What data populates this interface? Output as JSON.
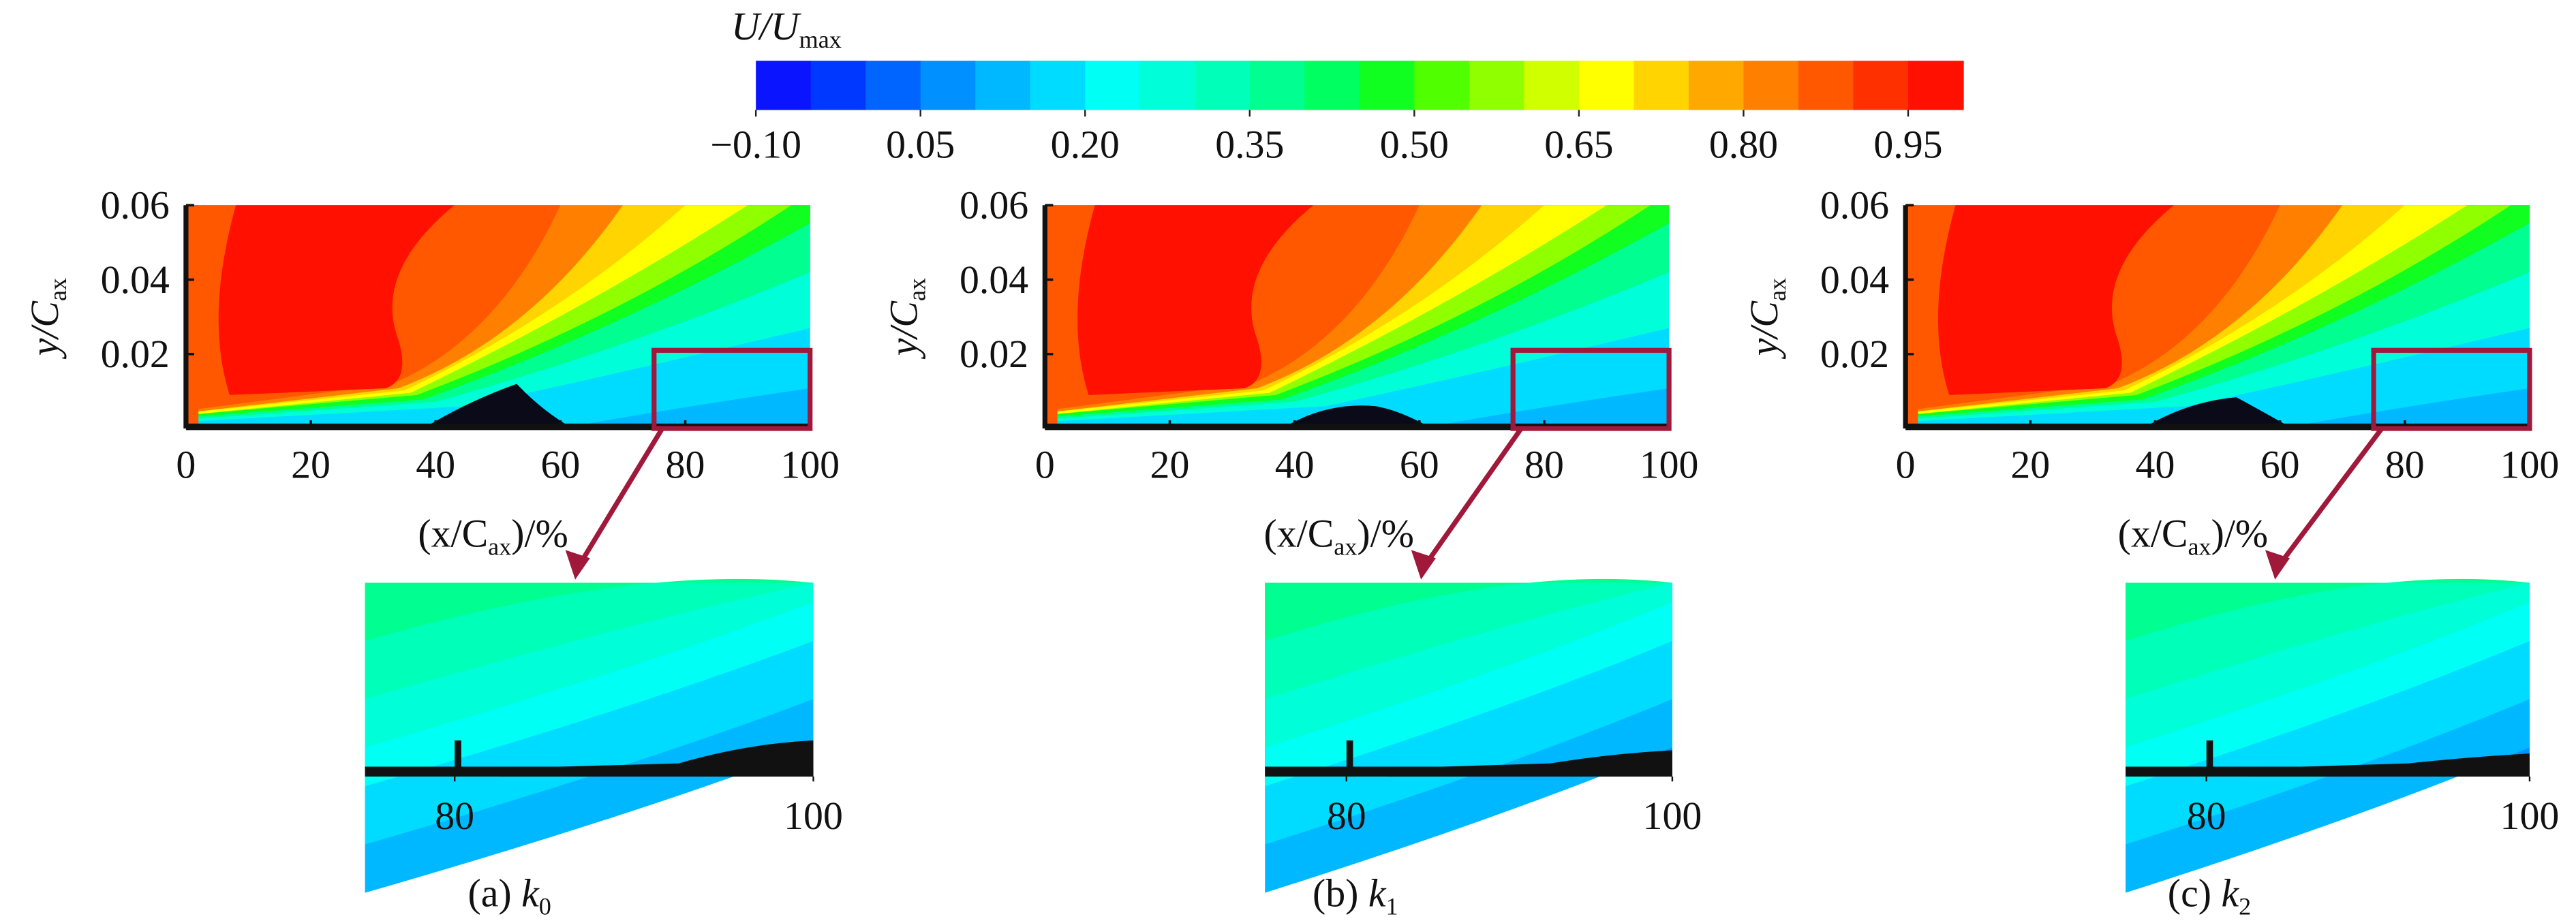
{
  "colorbar": {
    "title": "U/U",
    "title_sub": "max",
    "lim": [
      -0.1,
      1.0
    ],
    "ticks": [
      {
        "value": -0.1,
        "label": "−0.10"
      },
      {
        "value": 0.05,
        "label": "0.05"
      },
      {
        "value": 0.2,
        "label": "0.20"
      },
      {
        "value": 0.35,
        "label": "0.35"
      },
      {
        "value": 0.5,
        "label": "0.50"
      },
      {
        "value": 0.65,
        "label": "0.65"
      },
      {
        "value": 0.8,
        "label": "0.80"
      },
      {
        "value": 0.95,
        "label": "0.95"
      }
    ],
    "colors": [
      "#0a14ff",
      "#0038ff",
      "#0064ff",
      "#0090ff",
      "#00b8ff",
      "#00dcff",
      "#00fff4",
      "#00ffd8",
      "#00ffb8",
      "#00ff90",
      "#00ff60",
      "#10ff20",
      "#50ff00",
      "#90ff00",
      "#d0ff00",
      "#ffff00",
      "#ffd400",
      "#ffa800",
      "#ff8000",
      "#ff5800",
      "#ff3000",
      "#ff1000"
    ]
  },
  "chart_data": [
    {
      "type": "contour",
      "xlim": [
        0,
        100
      ],
      "xticks": [
        0,
        20,
        40,
        60,
        80,
        100
      ],
      "ylim": [
        0,
        0.06
      ],
      "yticks": [
        0.02,
        0.04,
        0.06
      ],
      "ylabel": "y/C",
      "ylabel_sub": "ax",
      "xlabel": [
        "(x/C",
        "ax",
        ")/%"
      ],
      "zoom": {
        "xlim": [
          75,
          100
        ],
        "ylim": [
          0,
          0.021
        ],
        "xticks": [
          80,
          100
        ]
      },
      "caption": [
        "(a) ",
        "k",
        "0"
      ],
      "box_color": "#a0183a"
    },
    {
      "type": "contour",
      "xlim": [
        0,
        100
      ],
      "xticks": [
        0,
        20,
        40,
        60,
        80,
        100
      ],
      "ylim": [
        0,
        0.06
      ],
      "yticks": [
        0.02,
        0.04,
        0.06
      ],
      "ylabel": "y/C",
      "ylabel_sub": "ax",
      "xlabel": [
        "(x/C",
        "ax",
        ")/%"
      ],
      "zoom": {
        "xlim": [
          75,
          100
        ],
        "ylim": [
          0,
          0.021
        ],
        "xticks": [
          80,
          100
        ]
      },
      "caption": [
        "(b) ",
        "k",
        "1"
      ],
      "box_color": "#a0183a"
    },
    {
      "type": "contour",
      "xlim": [
        0,
        100
      ],
      "xticks": [
        0,
        20,
        40,
        60,
        80,
        100
      ],
      "ylim": [
        0,
        0.06
      ],
      "yticks": [
        0.02,
        0.04,
        0.06
      ],
      "ylabel": "y/C",
      "ylabel_sub": "ax",
      "xlabel": [
        "(x/C",
        "ax",
        ")/%"
      ],
      "zoom": {
        "xlim": [
          75,
          100
        ],
        "ylim": [
          0,
          0.021
        ],
        "xticks": [
          80,
          100
        ]
      },
      "caption": [
        "(c) ",
        "k",
        "2"
      ],
      "box_color": "#a0183a"
    }
  ]
}
